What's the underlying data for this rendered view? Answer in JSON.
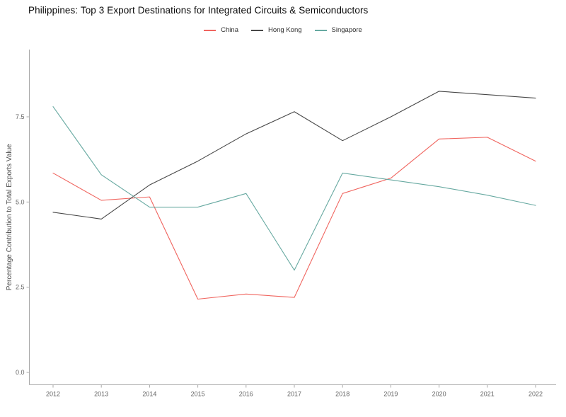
{
  "header": {
    "title": "Philippines: Top 3 Export Destinations for Integrated Circuits & Semiconductors"
  },
  "chart_data": {
    "type": "line",
    "title": "Philippines: Top 3 Export Destinations for Integrated Circuits & Semiconductors",
    "xlabel": "",
    "ylabel": "Percentage Contribution to Total Exports Value",
    "x": [
      2012,
      2013,
      2014,
      2015,
      2016,
      2017,
      2018,
      2019,
      2020,
      2021,
      2022
    ],
    "x_labels": [
      "2012",
      "2013",
      "2014",
      "2015",
      "2016",
      "2017",
      "2018",
      "2019",
      "2020",
      "2021",
      "2022"
    ],
    "y_ticks": {
      "values": [
        0,
        2.5,
        5.0,
        7.5
      ],
      "labels": [
        "0.0",
        "2.5",
        "5.0",
        "7.5"
      ]
    },
    "ylim": [
      0,
      9.45
    ],
    "grid": false,
    "legend_position": "top-center",
    "series": [
      {
        "name": "China",
        "color": "#f0655f",
        "values": [
          5.85,
          5.05,
          5.15,
          2.15,
          2.3,
          2.2,
          5.25,
          5.7,
          6.85,
          6.9,
          6.2
        ]
      },
      {
        "name": "Hong Kong",
        "color": "#474747",
        "values": [
          4.7,
          4.5,
          5.5,
          6.2,
          7.0,
          7.65,
          6.8,
          7.5,
          8.25,
          8.15,
          8.05
        ]
      },
      {
        "name": "Singapore",
        "color": "#67a9a1",
        "values": [
          7.8,
          5.8,
          4.85,
          4.85,
          5.25,
          3.0,
          5.85,
          5.65,
          5.45,
          5.2,
          4.9
        ]
      }
    ],
    "colors": {
      "axis": "#a9a9a9",
      "tick_label": "#646464",
      "axis_label": "#4a4a4a",
      "title": "#0a0a0a"
    }
  }
}
